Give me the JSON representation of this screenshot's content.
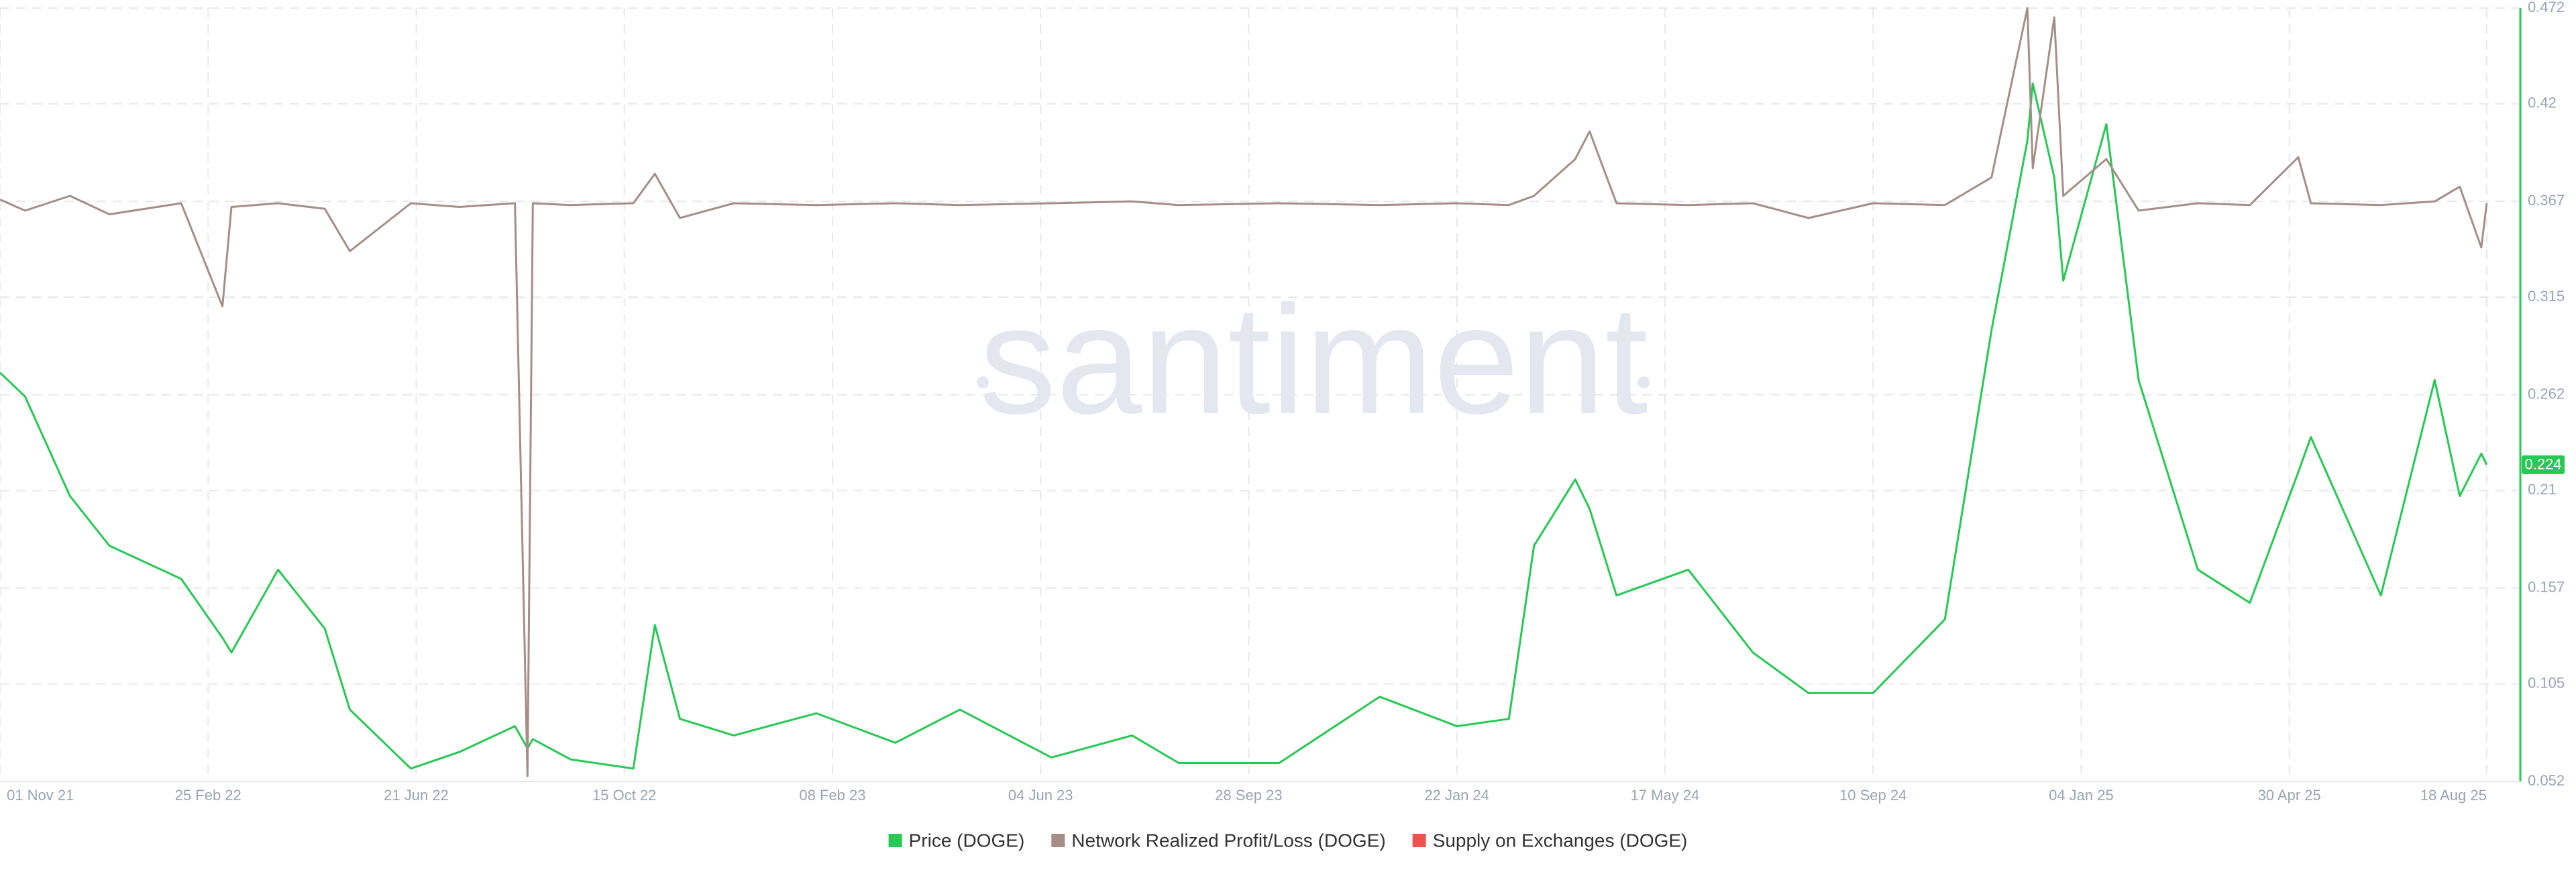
{
  "chart_data": {
    "type": "line",
    "watermark": "santiment",
    "x": [
      "2021-11-01",
      "2021-11-15",
      "2021-12-10",
      "2022-01-01",
      "2022-02-10",
      "2022-03-05",
      "2022-03-10",
      "2022-04-05",
      "2022-05-01",
      "2022-05-15",
      "2022-06-18",
      "2022-07-15",
      "2022-08-15",
      "2022-08-22",
      "2022-08-25",
      "2022-09-15",
      "2022-10-20",
      "2022-11-01",
      "2022-11-15",
      "2022-12-15",
      "2023-01-30",
      "2023-03-15",
      "2023-04-20",
      "2023-06-10",
      "2023-07-25",
      "2023-08-20",
      "2023-10-15",
      "2023-12-10",
      "2024-01-22",
      "2024-02-20",
      "2024-03-05",
      "2024-03-28",
      "2024-04-05",
      "2024-04-20",
      "2024-05-30",
      "2024-07-05",
      "2024-08-05",
      "2024-09-10",
      "2024-10-20",
      "2024-11-15",
      "2024-12-05",
      "2024-12-08",
      "2024-12-20",
      "2024-12-25",
      "2025-01-18",
      "2025-02-05",
      "2025-03-10",
      "2025-04-08",
      "2025-05-05",
      "2025-05-12",
      "2025-06-20",
      "2025-07-20",
      "2025-08-03",
      "2025-08-15",
      "2025-08-18"
    ],
    "series": [
      {
        "name": "Price (DOGE)",
        "color": "#26c953",
        "values": [
          0.274,
          0.261,
          0.207,
          0.18,
          0.162,
          0.13,
          0.122,
          0.167,
          0.135,
          0.091,
          0.059,
          0.068,
          0.082,
          0.07,
          0.075,
          0.064,
          0.059,
          0.137,
          0.086,
          0.077,
          0.089,
          0.073,
          0.091,
          0.065,
          0.077,
          0.062,
          0.062,
          0.098,
          0.082,
          0.086,
          0.18,
          0.216,
          0.2,
          0.153,
          0.167,
          0.122,
          0.1,
          0.1,
          0.14,
          0.297,
          0.4,
          0.431,
          0.38,
          0.324,
          0.409,
          0.27,
          0.167,
          0.149,
          0.22,
          0.239,
          0.153,
          0.27,
          0.207,
          0.23,
          0.224
        ]
      },
      {
        "name": "Network Realized Profit/Loss (DOGE)",
        "color": "#a58e87",
        "values": [
          0.368,
          0.362,
          0.37,
          0.36,
          0.366,
          0.31,
          0.364,
          0.366,
          0.363,
          0.34,
          0.366,
          0.364,
          0.366,
          0.055,
          0.366,
          0.365,
          0.366,
          0.382,
          0.358,
          0.366,
          0.365,
          0.366,
          0.365,
          0.366,
          0.367,
          0.365,
          0.366,
          0.365,
          0.366,
          0.365,
          0.37,
          0.39,
          0.405,
          0.366,
          0.365,
          0.366,
          0.358,
          0.366,
          0.365,
          0.38,
          0.472,
          0.385,
          0.467,
          0.37,
          0.39,
          0.362,
          0.366,
          0.365,
          0.391,
          0.366,
          0.365,
          0.367,
          0.375,
          0.342,
          0.366
        ]
      },
      {
        "name": "Supply on Exchanges (DOGE)",
        "color": "#ef5350",
        "values": [
          null,
          null,
          null,
          null,
          null,
          null,
          null,
          null,
          null,
          null,
          null,
          null,
          null,
          null,
          null,
          null,
          null,
          null,
          null,
          null,
          null,
          null,
          null,
          null,
          null,
          null,
          null,
          null,
          null,
          null,
          null,
          null,
          null,
          null,
          null,
          null,
          null,
          null,
          null,
          null,
          null,
          null,
          null,
          null,
          null,
          null,
          null,
          null,
          null,
          null,
          null,
          null,
          null,
          null,
          null
        ]
      }
    ],
    "current_price": 0.224,
    "xlim": [
      "2021-11-01",
      "2025-09-05"
    ],
    "xticks": [
      {
        "value": "2021-11-01",
        "label": "01 Nov 21"
      },
      {
        "value": "2022-02-25",
        "label": "25 Feb 22"
      },
      {
        "value": "2022-06-21",
        "label": "21 Jun 22"
      },
      {
        "value": "2022-10-15",
        "label": "15 Oct 22"
      },
      {
        "value": "2023-02-08",
        "label": "08 Feb 23"
      },
      {
        "value": "2023-06-04",
        "label": "04 Jun 23"
      },
      {
        "value": "2023-09-28",
        "label": "28 Sep 23"
      },
      {
        "value": "2024-01-22",
        "label": "22 Jan 24"
      },
      {
        "value": "2024-05-17",
        "label": "17 May 24"
      },
      {
        "value": "2024-09-10",
        "label": "10 Sep 24"
      },
      {
        "value": "2025-01-04",
        "label": "04 Jan 25"
      },
      {
        "value": "2025-04-30",
        "label": "30 Apr 25"
      },
      {
        "value": "2025-08-18",
        "label": "18 Aug 25"
      }
    ],
    "ylim": [
      0.052,
      0.472
    ],
    "yticks": [
      0.052,
      0.105,
      0.157,
      0.21,
      0.262,
      0.315,
      0.367,
      0.42,
      0.472
    ],
    "grid": true
  }
}
